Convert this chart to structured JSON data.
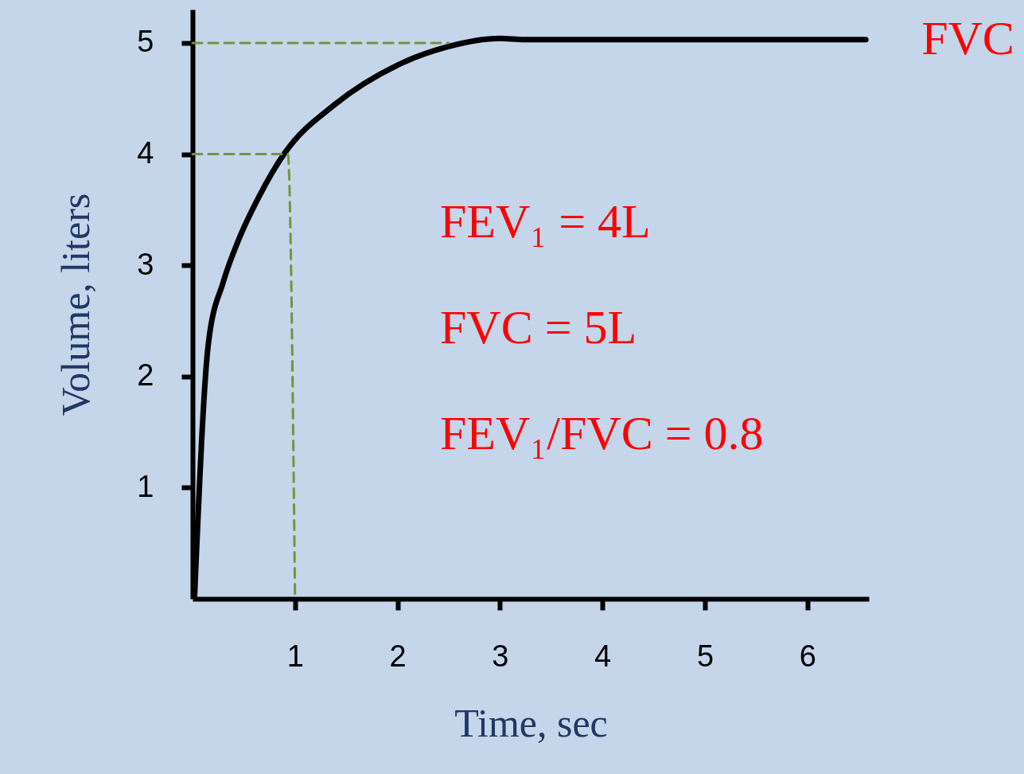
{
  "chart_data": {
    "type": "line",
    "xlabel": "Time, sec",
    "ylabel": "Volume, liters",
    "xlim": [
      0,
      6.6
    ],
    "ylim": [
      0,
      5.3
    ],
    "xticks": [
      1,
      2,
      3,
      4,
      5,
      6
    ],
    "yticks": [
      1,
      2,
      3,
      4,
      5
    ],
    "grid": false,
    "legend": false,
    "marker": "none",
    "series": [
      {
        "name": "FVC",
        "color": "#000000",
        "line_style": "solid",
        "x": [
          0.02,
          0.155,
          0.3,
          0.45,
          0.65,
          0.9,
          1.38,
          2.0,
          2.47,
          3.0,
          3.24,
          6.57
        ],
        "values": [
          0.03,
          2.3,
          2.85,
          3.23,
          3.62,
          4.01,
          4.44,
          4.8,
          4.96,
          5.04,
          5.03,
          5.03
        ]
      },
      {
        "color": "#77933c",
        "line_style": "dashed",
        "x": [
          0,
          2.5
        ],
        "values": [
          5,
          5
        ]
      },
      {
        "color": "#77933c",
        "line_style": "dashed",
        "x": [
          0,
          0.93,
          1.0
        ],
        "values": [
          4,
          4,
          0
        ]
      }
    ],
    "annotations": [
      "FEV₁ = 4L",
      "FVC  = 5L",
      "FEV₁/FVC = 0.8"
    ]
  }
}
